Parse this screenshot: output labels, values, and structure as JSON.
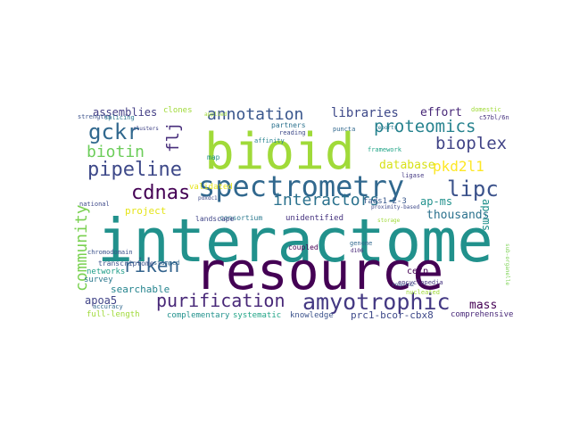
{
  "words": [
    {
      "text": "interactome",
      "color": "#21918c"
    },
    {
      "text": "resource",
      "color": "#440154"
    },
    {
      "text": "bioid",
      "color": "#a0da39"
    },
    {
      "text": "spectrometry",
      "color": "#31688e"
    },
    {
      "text": "amyotrophic",
      "color": "#443983"
    },
    {
      "text": "purification",
      "color": "#482878"
    },
    {
      "text": "proteomics",
      "color": "#26828e"
    },
    {
      "text": "pipeline",
      "color": "#3e4989"
    },
    {
      "text": "annotation",
      "color": "#39568c"
    },
    {
      "text": "interactors",
      "color": "#2c728e"
    },
    {
      "text": "bioplex",
      "color": "#414487"
    },
    {
      "text": "lipc",
      "color": "#3b528b"
    },
    {
      "text": "gckr",
      "color": "#31688e"
    },
    {
      "text": "biotin",
      "color": "#6ccd5a"
    },
    {
      "text": "cdnas",
      "color": "#440154"
    },
    {
      "text": "riken",
      "color": "#33638d"
    },
    {
      "text": "libraries",
      "color": "#3e4989"
    },
    {
      "text": "pkd2l1",
      "color": "#fde725"
    },
    {
      "text": "thousands",
      "color": "#2c728e"
    },
    {
      "text": "database",
      "color": "#d8e219"
    },
    {
      "text": "ap-ms",
      "color": "#21918c"
    },
    {
      "text": "effort",
      "color": "#482878"
    },
    {
      "text": "community",
      "color": "#7ad151"
    },
    {
      "text": "flj",
      "color": "#472d7b"
    },
    {
      "text": "assemblies",
      "color": "#433e85"
    },
    {
      "text": "project",
      "color": "#e5e419"
    },
    {
      "text": "searchable",
      "color": "#25848e"
    },
    {
      "text": "apoa5",
      "color": "#414487"
    },
    {
      "text": "mass",
      "color": "#440154"
    },
    {
      "text": "fads1-2-3",
      "color": "#38588c"
    },
    {
      "text": "networks",
      "color": "#1f9e89"
    },
    {
      "text": "full-length",
      "color": "#a0da39"
    },
    {
      "text": "survey",
      "color": "#2a788e"
    },
    {
      "text": "accuracy",
      "color": "#31688e"
    },
    {
      "text": "complementary",
      "color": "#21918c"
    },
    {
      "text": "systematic",
      "color": "#20a486"
    },
    {
      "text": "knowledge",
      "color": "#3b528b"
    },
    {
      "text": "prc1-bcor-cbx8",
      "color": "#3e4989"
    },
    {
      "text": "comprehensive",
      "color": "#482878"
    },
    {
      "text": "consortium",
      "color": "#2a788e"
    },
    {
      "text": "unidentified",
      "color": "#46337f"
    },
    {
      "text": "landscape",
      "color": "#404688"
    },
    {
      "text": "coupled",
      "color": "#440154"
    },
    {
      "text": "transcriptome",
      "color": "#3b528b"
    },
    {
      "text": "stamped",
      "color": "#31688e"
    },
    {
      "text": "validated",
      "color": "#e5e419"
    },
    {
      "text": "national",
      "color": "#3e4989"
    },
    {
      "text": "clones",
      "color": "#a0da39"
    },
    {
      "text": "strengths",
      "color": "#3b528b"
    },
    {
      "text": "splicing",
      "color": "#2a788e"
    },
    {
      "text": "clusters",
      "color": "#414487"
    },
    {
      "text": "partners",
      "color": "#2c728e"
    },
    {
      "text": "reading",
      "color": "#3e4989"
    },
    {
      "text": "puncta",
      "color": "#31688e"
    },
    {
      "text": "framework",
      "color": "#20a486"
    },
    {
      "text": "ligase",
      "color": "#443983"
    },
    {
      "text": "domestic",
      "color": "#a0da39"
    },
    {
      "text": "proximity-based",
      "color": "#3e4989"
    },
    {
      "text": "encyclopedia",
      "color": "#46337f"
    },
    {
      "text": "nucleated",
      "color": "#a0da39"
    },
    {
      "text": "cetp",
      "color": "#440154"
    },
    {
      "text": "roquin2",
      "color": "#3b528b"
    },
    {
      "text": "genome",
      "color": "#31688e"
    },
    {
      "text": "d106",
      "color": "#482878"
    },
    {
      "text": "pdxdc1",
      "color": "#3e4989"
    },
    {
      "text": "map",
      "color": "#21918c"
    },
    {
      "text": "affinity",
      "color": "#26828e"
    },
    {
      "text": "applied",
      "color": "#a0da39"
    },
    {
      "text": "reports",
      "color": "#2a788e"
    },
    {
      "text": "chromodomain",
      "color": "#3b528b"
    },
    {
      "text": "sub-organelle",
      "color": "#7ad151"
    },
    {
      "text": "storage",
      "color": "#a0da39"
    },
    {
      "text": "c57bl/6n",
      "color": "#46337f"
    }
  ]
}
